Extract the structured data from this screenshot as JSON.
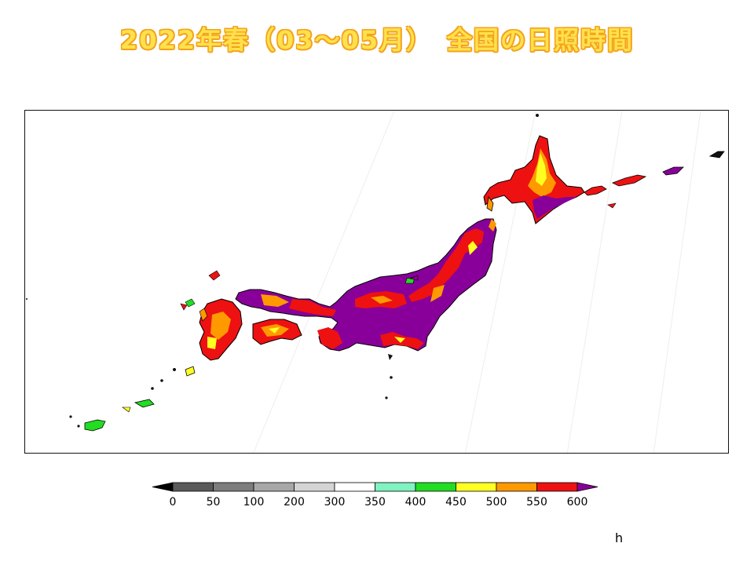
{
  "title": "2022年春（03～05月）　全国の日照時間",
  "unit": "h",
  "legend": {
    "levels": [
      0,
      50,
      100,
      200,
      300,
      350,
      400,
      450,
      500,
      550,
      600
    ],
    "tick_labels": [
      "0",
      "50",
      "100",
      "200",
      "300",
      "350",
      "400",
      "450",
      "500",
      "550",
      "600"
    ],
    "colors": [
      "#000000",
      "#5a5a5a",
      "#7d7d7d",
      "#a7a7a7",
      "#d4d4d4",
      "#ffffff",
      "#7ff3c0",
      "#22dd22",
      "#ffff22",
      "#ff9900",
      "#ee1111",
      "#880099"
    ]
  },
  "regions": [
    {
      "name": "hokkaido",
      "color": "#ee1111"
    },
    {
      "name": "hokkaido-orange",
      "color": "#ff9900"
    },
    {
      "name": "hokkaido-yellow",
      "color": "#ffff22"
    },
    {
      "name": "tohoku-honshu",
      "color": "#880099"
    },
    {
      "name": "honshu-red",
      "color": "#ee1111"
    },
    {
      "name": "honshu-orange",
      "color": "#ff9900"
    },
    {
      "name": "shikoku",
      "color": "#ee1111"
    },
    {
      "name": "kyushu",
      "color": "#ee1111"
    },
    {
      "name": "islands",
      "color": "#22dd22"
    }
  ]
}
